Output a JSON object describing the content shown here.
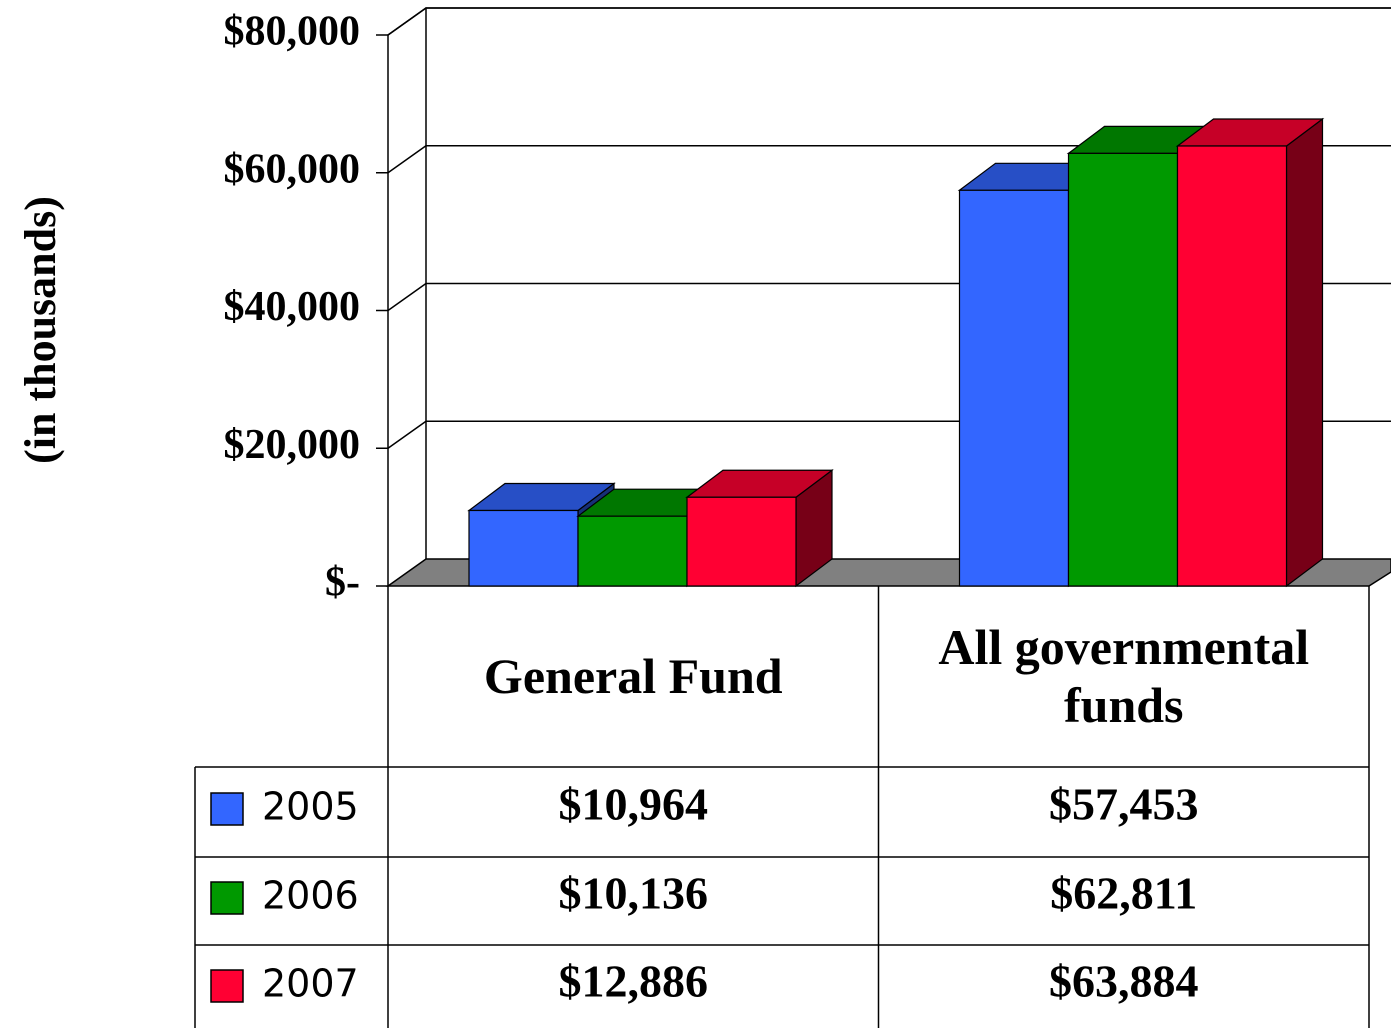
{
  "chart_data": {
    "type": "bar3d",
    "y_label": "(in thousands)",
    "categories": [
      "General Fund",
      "All governmental funds"
    ],
    "series": [
      {
        "name": "2005",
        "color": "#3366ff",
        "values": [
          10964,
          57453
        ],
        "value_labels": [
          "$10,964",
          "$57,453"
        ]
      },
      {
        "name": "2006",
        "color": "#009900",
        "values": [
          10136,
          62811
        ],
        "value_labels": [
          "$10,136",
          "$62,811"
        ]
      },
      {
        "name": "2007",
        "color": "#ff0033",
        "values": [
          12886,
          63884
        ],
        "value_labels": [
          "$12,886",
          "$63,884"
        ]
      }
    ],
    "ylim": [
      0,
      80000
    ],
    "yticks": [
      {
        "value": 0,
        "label": "$-"
      },
      {
        "value": 20000,
        "label": "$20,000"
      },
      {
        "value": 40000,
        "label": "$40,000"
      },
      {
        "value": 60000,
        "label": "$60,000"
      },
      {
        "value": 80000,
        "label": "$80,000"
      }
    ],
    "grid": true
  }
}
